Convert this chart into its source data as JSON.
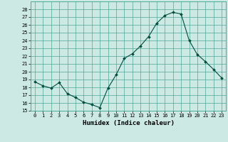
{
  "title": "",
  "xlabel": "Humidex (Indice chaleur)",
  "xlim": [
    -0.5,
    23.5
  ],
  "ylim": [
    15,
    29
  ],
  "yticks": [
    15,
    16,
    17,
    18,
    19,
    20,
    21,
    22,
    23,
    24,
    25,
    26,
    27,
    28
  ],
  "xticks": [
    0,
    1,
    2,
    3,
    4,
    5,
    6,
    7,
    8,
    9,
    10,
    11,
    12,
    13,
    14,
    15,
    16,
    17,
    18,
    19,
    20,
    21,
    22,
    23
  ],
  "background_color": "#cce9e4",
  "grid_color": "#4da898",
  "line_color": "#004d3d",
  "marker_color": "#004d3d",
  "x": [
    0,
    1,
    2,
    3,
    4,
    5,
    6,
    7,
    8,
    9,
    10,
    11,
    12,
    13,
    14,
    15,
    16,
    17,
    18,
    19,
    20,
    21,
    22,
    23
  ],
  "y": [
    18.7,
    18.2,
    17.9,
    18.6,
    17.2,
    16.7,
    16.1,
    15.8,
    15.4,
    17.9,
    19.6,
    21.7,
    22.3,
    23.3,
    24.5,
    26.2,
    27.2,
    27.6,
    27.4,
    24.0,
    22.2,
    21.3,
    20.3,
    19.2
  ]
}
